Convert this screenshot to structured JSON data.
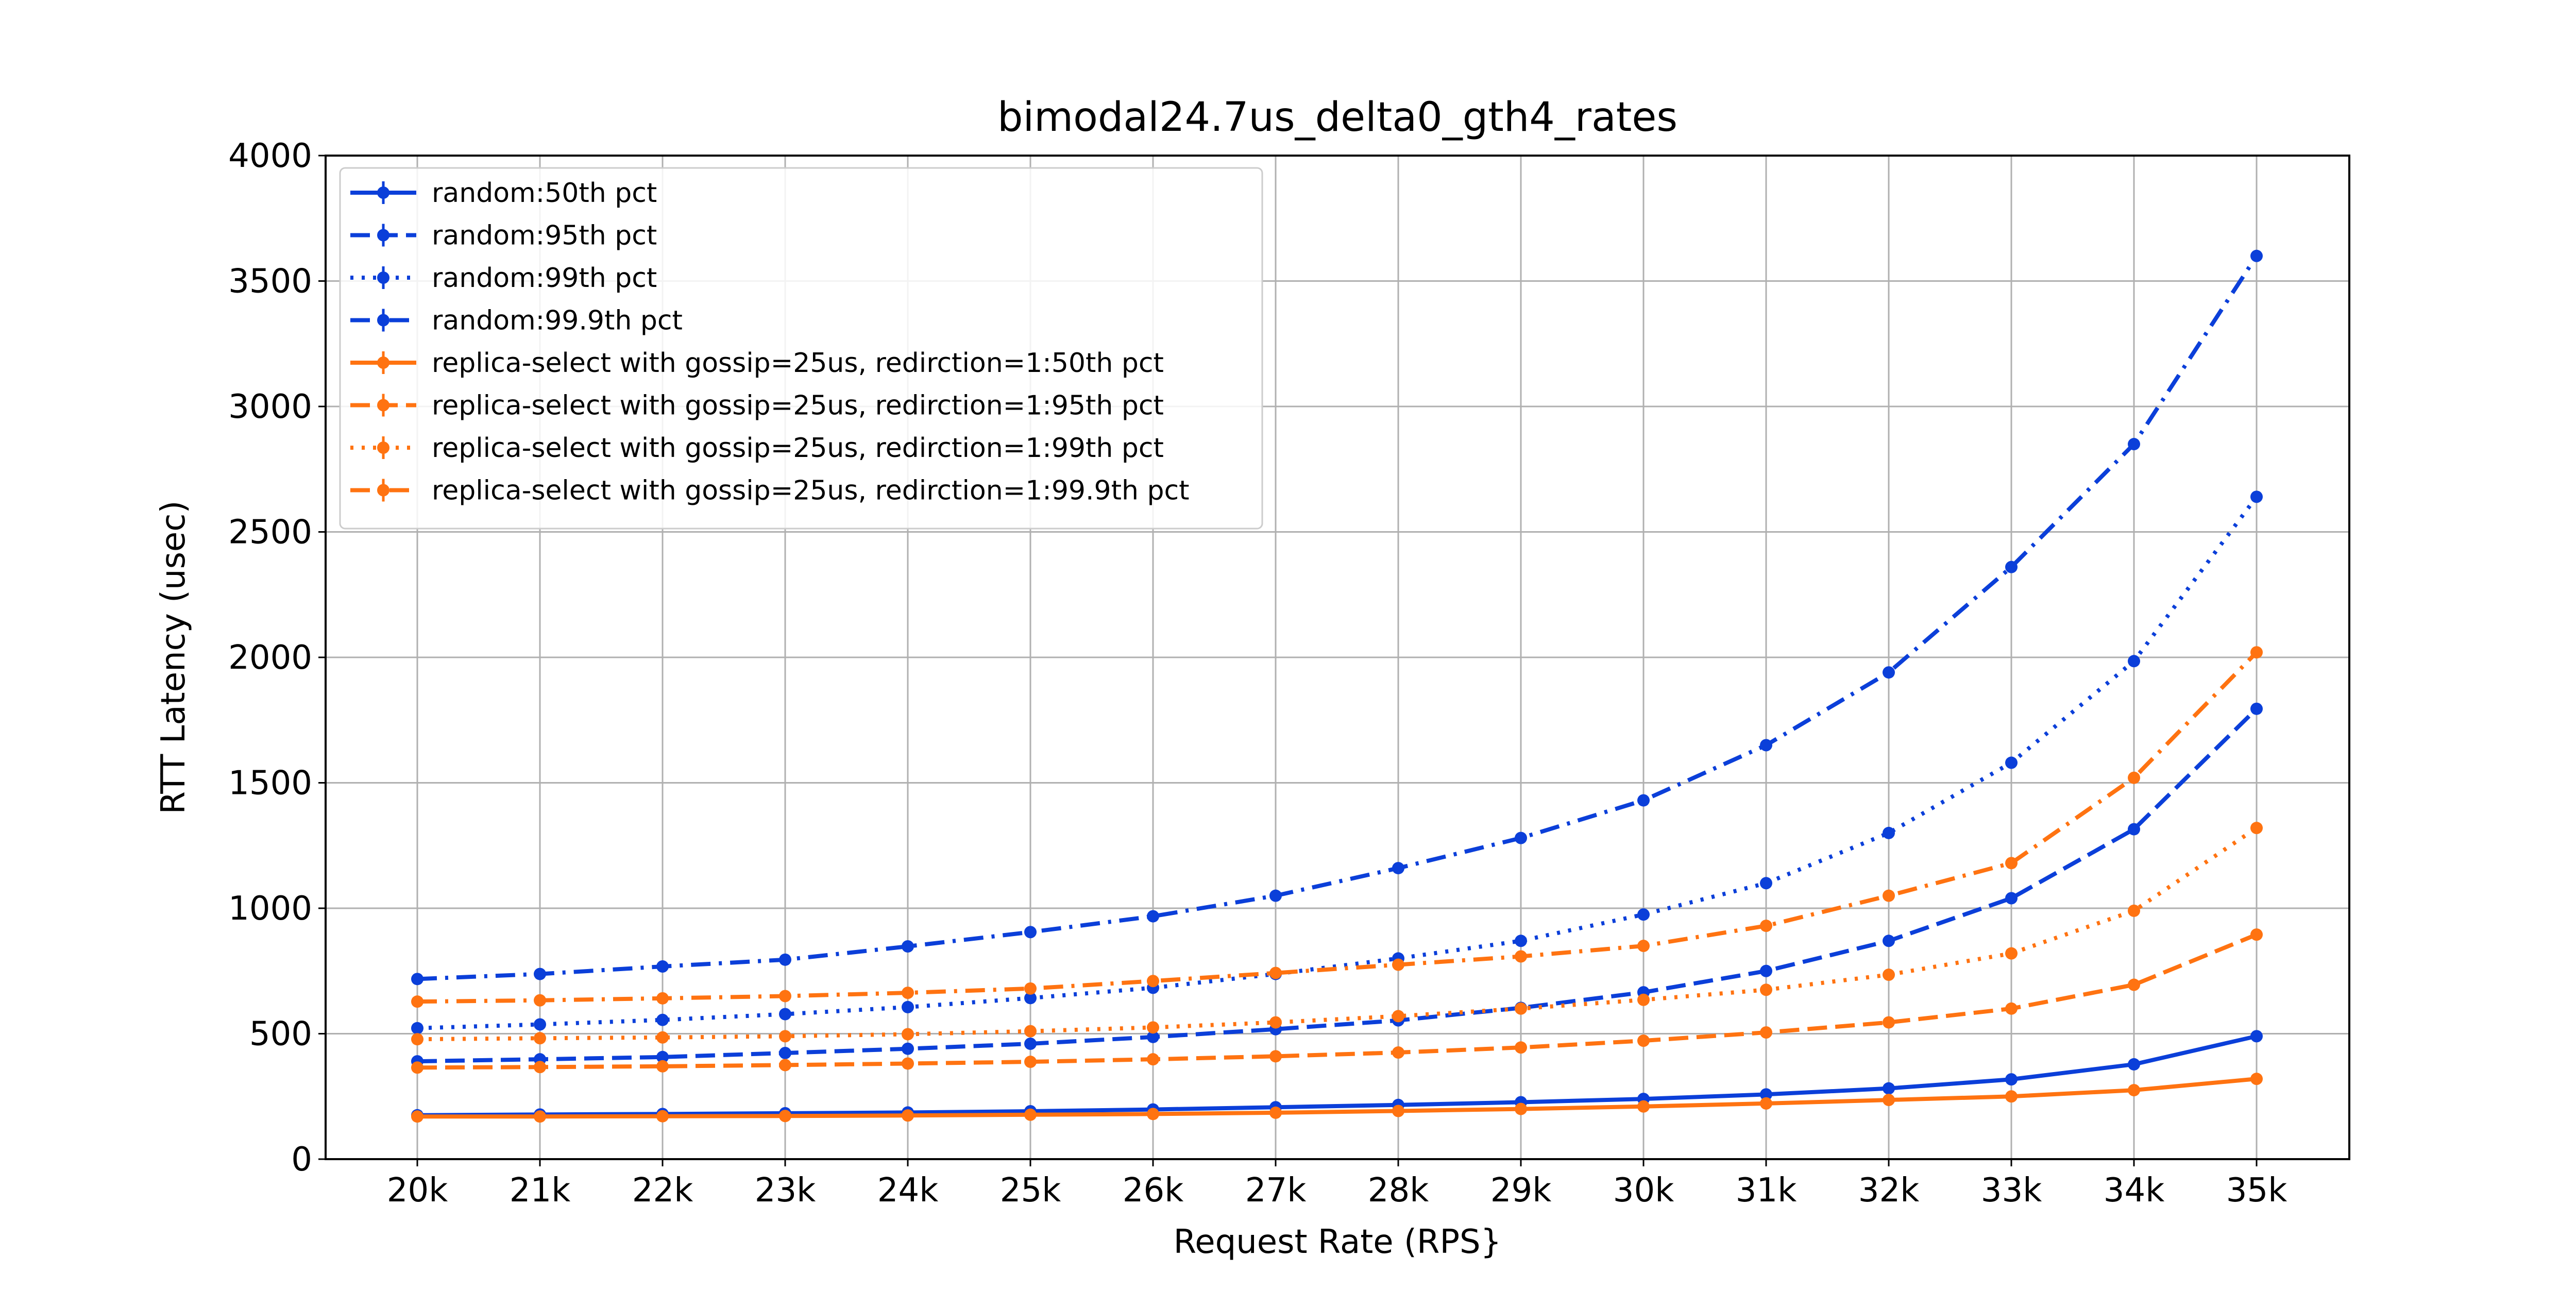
{
  "chart_data": {
    "type": "line",
    "title": "bimodal24.7us_delta0_gth4_rates",
    "xlabel": "Request Rate (RPS}",
    "ylabel": "RTT Latency (usec)",
    "categories": [
      "20k",
      "21k",
      "22k",
      "23k",
      "24k",
      "25k",
      "26k",
      "27k",
      "28k",
      "29k",
      "30k",
      "31k",
      "32k",
      "33k",
      "34k",
      "35k"
    ],
    "ylim": [
      0,
      4000
    ],
    "yticks": [
      0,
      500,
      1000,
      1500,
      2000,
      2500,
      3000,
      3500,
      4000
    ],
    "grid": true,
    "legend_position": "top-left",
    "series": [
      {
        "name": "random:50th pct",
        "color": "#0b3fd9",
        "style": "solid",
        "values": [
          175,
          178,
          180,
          183,
          186,
          191,
          198,
          207,
          216,
          227,
          240,
          258,
          282,
          318,
          378,
          490
        ]
      },
      {
        "name": "random:95th pct",
        "color": "#0b3fd9",
        "style": "dashed",
        "values": [
          390,
          398,
          407,
          423,
          440,
          460,
          487,
          518,
          553,
          603,
          665,
          750,
          870,
          1040,
          1315,
          1795
        ]
      },
      {
        "name": "random:99th pct",
        "color": "#0b3fd9",
        "style": "dotted",
        "values": [
          522,
          537,
          555,
          578,
          606,
          642,
          683,
          738,
          800,
          870,
          975,
          1100,
          1300,
          1580,
          1985,
          2640
        ]
      },
      {
        "name": "random:99.9th pct",
        "color": "#0b3fd9",
        "style": "dashdot",
        "values": [
          718,
          738,
          768,
          795,
          848,
          905,
          968,
          1050,
          1160,
          1280,
          1430,
          1650,
          1940,
          2360,
          2850,
          3600
        ]
      },
      {
        "name": "replica-select with gossip=25us, redirction=1:50th pct",
        "color": "#ff7311",
        "style": "solid",
        "values": [
          170,
          170,
          171,
          172,
          174,
          177,
          180,
          185,
          192,
          200,
          210,
          222,
          236,
          250,
          275,
          320
        ]
      },
      {
        "name": "replica-select with gossip=25us, redirction=1:95th pct",
        "color": "#ff7311",
        "style": "dashed",
        "values": [
          365,
          367,
          370,
          375,
          381,
          388,
          398,
          410,
          425,
          445,
          472,
          505,
          545,
          600,
          695,
          895
        ]
      },
      {
        "name": "replica-select with gossip=25us, redirction=1:99th pct",
        "color": "#ff7311",
        "style": "dotted",
        "values": [
          478,
          482,
          485,
          490,
          498,
          510,
          525,
          545,
          570,
          600,
          635,
          675,
          735,
          820,
          990,
          1320
        ]
      },
      {
        "name": "replica-select with gossip=25us, redirction=1:99.9th pct",
        "color": "#ff7311",
        "style": "dashdot",
        "values": [
          628,
          633,
          641,
          650,
          663,
          680,
          710,
          742,
          775,
          808,
          850,
          930,
          1050,
          1180,
          1520,
          2020
        ]
      }
    ]
  }
}
